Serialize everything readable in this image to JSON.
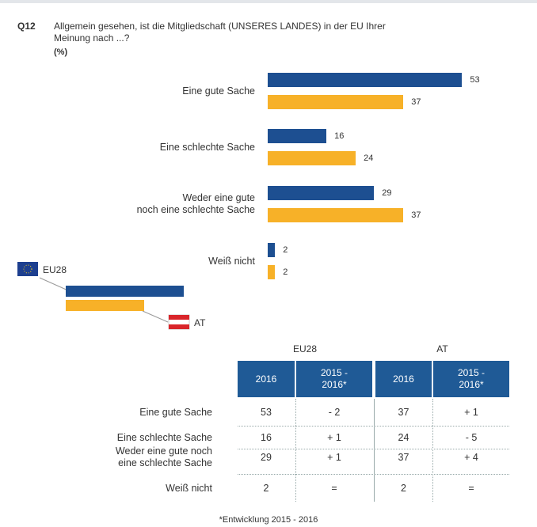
{
  "chart_data": {
    "type": "hbar",
    "title": "Q12",
    "question": "Allgemein gesehen, ist die Mitgliedschaft (UNSERES LANDES) in der EU Ihrer\nMeinung nach ...?",
    "subtitle": "(%)",
    "categories": [
      "Eine gute Sache",
      "Eine schlechte Sache",
      "Weder eine gute\nnoch eine schlechte Sache",
      "Weiß nicht"
    ],
    "series": [
      {
        "name": "EU28",
        "color": "#1d4f91",
        "values": [
          53,
          16,
          29,
          2
        ]
      },
      {
        "name": "AT",
        "color": "#f7b128",
        "values": [
          37,
          24,
          37,
          2
        ]
      }
    ]
  },
  "table": {
    "groups": [
      "EU28",
      "AT"
    ],
    "columns": [
      "2016",
      "2015 -\n2016*",
      "2016",
      "2015 -\n2016*"
    ],
    "rows": [
      {
        "label": "Eine gute Sache",
        "cells": [
          53,
          "- 2",
          37,
          "+ 1"
        ]
      },
      {
        "label": "Eine schlechte Sache",
        "cells": [
          16,
          "+ 1",
          24,
          "- 5"
        ]
      },
      {
        "label": "Weder eine gute noch\neine schlechte Sache",
        "cells": [
          29,
          "+ 1",
          37,
          "+ 4"
        ]
      },
      {
        "label": "Weiß nicht",
        "cells": [
          2,
          "=",
          2,
          "="
        ]
      }
    ],
    "footnote": "*Entwicklung 2015 - 2016"
  }
}
